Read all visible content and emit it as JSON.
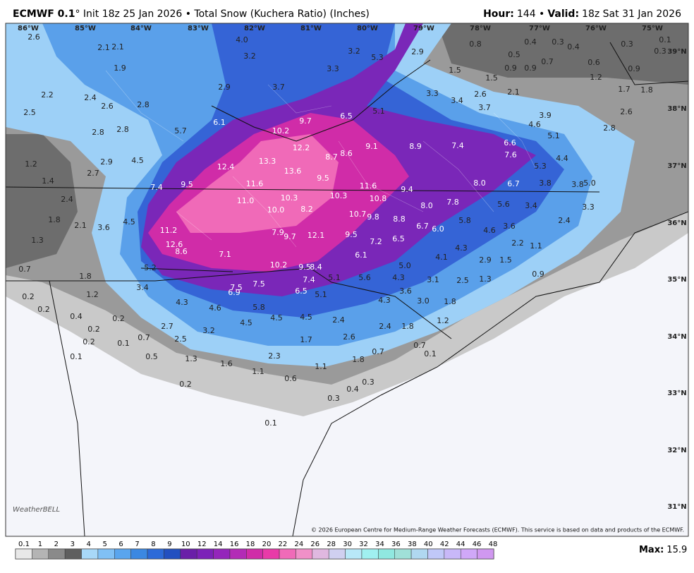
{
  "header": {
    "model": "ECMWF 0.1",
    "details": "° Init 18z 25 Jan 2026 • Total Snow (Kuchera Ratio) (Inches)",
    "hour_label": "Hour:",
    "hour": "144 •",
    "valid_label": "Valid:",
    "valid": "18z Sat 31 Jan 2026"
  },
  "map": {
    "lon_labels": [
      "86°W",
      "85°W",
      "84°W",
      "83°W",
      "82°W",
      "81°W",
      "80°W",
      "79°W",
      "78°W",
      "77°W",
      "76°W",
      "75°W"
    ],
    "lat_labels": [
      "39°N",
      "38°N",
      "37°N",
      "36°N",
      "35°N",
      "34°N",
      "33°N",
      "32°N",
      "31°N"
    ],
    "labels": [
      "2.6",
      "4.0",
      "2.1",
      "2.1",
      "3.2",
      "3.2",
      "5.3",
      "2.9",
      "0.8",
      "0.4",
      "0.3",
      "0.4",
      "0.3",
      "0.1",
      "0.3",
      "1.9",
      "3.3",
      "1.5",
      "0.5",
      "0.9",
      "0.9",
      "0.7",
      "0.6",
      "0.9",
      "1.5",
      "1.2",
      "1.7",
      "1.8",
      "2.9",
      "3.7",
      "2.2",
      "2.4",
      "2.6",
      "2.8",
      "3.3",
      "3.4",
      "2.6",
      "2.1",
      "3.7",
      "2.5",
      "6.5",
      "5.1",
      "3.9",
      "2.6",
      "2.8",
      "2.8",
      "5.7",
      "6.1",
      "10.2",
      "9.7",
      "4.6",
      "5.1",
      "2.8",
      "1.2",
      "2.9",
      "4.5",
      "12.4",
      "13.3",
      "12.2",
      "8.7",
      "8.6",
      "9.1",
      "8.9",
      "7.4",
      "6.6",
      "7.6",
      "4.4",
      "5.3",
      "2.7",
      "1.4",
      "7.4",
      "9.5",
      "11.6",
      "13.6",
      "9.5",
      "11.6",
      "9.4",
      "8.0",
      "6.7",
      "3.8",
      "3.8",
      "5.0",
      "2.4",
      "11.0",
      "10.3",
      "10.3",
      "10.8",
      "8.0",
      "7.8",
      "5.6",
      "3.4",
      "3.3",
      "1.8",
      "2.1",
      "3.6",
      "4.5",
      "10.0",
      "8.2",
      "10.7",
      "9.8",
      "8.8",
      "6.7",
      "6.0",
      "5.8",
      "4.6",
      "3.6",
      "2.4",
      "1.3",
      "11.2",
      "7.9",
      "9.7",
      "12.1",
      "9.5",
      "7.2",
      "6.5",
      "4.3",
      "2.2",
      "1.1",
      "12.6",
      "8.6",
      "7.1",
      "6.1",
      "4.1",
      "2.9",
      "1.5",
      "0.7",
      "5.2",
      "10.2",
      "9.5",
      "8.4",
      "5.0",
      "0.9",
      "1.8",
      "7.4",
      "5.1",
      "5.6",
      "4.3",
      "3.1",
      "2.5",
      "1.3",
      "3.4",
      "7.5",
      "7.5",
      "6.9",
      "6.5",
      "5.1",
      "3.6",
      "0.2",
      "1.2",
      "4.3",
      "4.6",
      "5.8",
      "4.3",
      "3.0",
      "1.8",
      "0.2",
      "0.4",
      "4.5",
      "4.5",
      "4.5",
      "2.4",
      "1.2",
      "0.2",
      "2.7",
      "3.2",
      "0.2",
      "0.2",
      "0.1",
      "0.7",
      "2.5",
      "1.7",
      "2.6",
      "2.4",
      "1.8",
      "0.7",
      "0.1",
      "0.5",
      "1.3",
      "1.6",
      "2.3",
      "1.1",
      "1.8",
      "0.7",
      "0.1",
      "1.1",
      "0.6",
      "0.3",
      "0.4",
      "0.2",
      "0.3",
      "0.1"
    ],
    "logo": "WeatherBELL",
    "copyright": "© 2026 European Centre for Medium-Range Weather Forecasts (ECMWF). This service is based on data and products of the ECMWF."
  },
  "colorbar": {
    "ticks": [
      0.1,
      1,
      2,
      3,
      4,
      5,
      6,
      7,
      8,
      9,
      10,
      12,
      14,
      16,
      18,
      20,
      22,
      24,
      26,
      28,
      30,
      32,
      34,
      36,
      38,
      40,
      42,
      44,
      46,
      48
    ],
    "colors": [
      "#e8e8e8",
      "#b4b4b4",
      "#8a8a8a",
      "#5f5f5f",
      "#a8d8f8",
      "#80c0f5",
      "#5aa5ee",
      "#3b88e2",
      "#2c6ad8",
      "#2250c0",
      "#6a1fa8",
      "#7c22b8",
      "#9425bb",
      "#b32bb6",
      "#d02ca8",
      "#e83aa8",
      "#f06ab8",
      "#f090c8",
      "#e0b8e0",
      "#d0d0f0",
      "#b8e8f8",
      "#a0f0f0",
      "#90e8e0",
      "#a0e0d8",
      "#b0d8f0",
      "#c0c8f8",
      "#c8b8f8",
      "#d0a8f8",
      "#d098f0"
    ]
  },
  "max": {
    "label": "Max:",
    "value": "15.9"
  }
}
